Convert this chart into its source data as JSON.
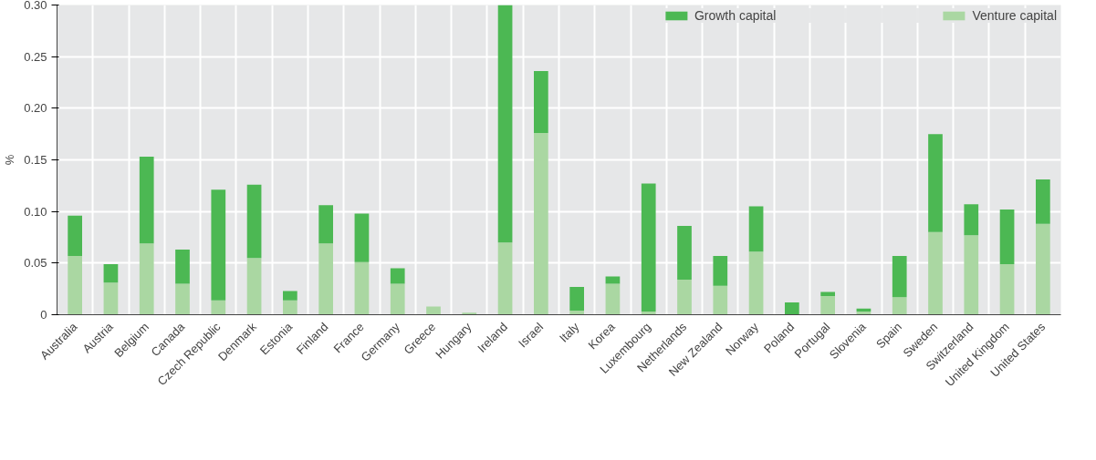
{
  "chart_data": {
    "type": "bar",
    "stacked": true,
    "ylabel": "%",
    "categories": [
      "Australia",
      "Austria",
      "Belgium",
      "Canada",
      "Czech Republic",
      "Denmark",
      "Estonia",
      "Finland",
      "France",
      "Germany",
      "Greece",
      "Hungary",
      "Ireland",
      "Israel",
      "Italy",
      "Korea",
      "Luxembourg",
      "Netherlands",
      "New Zealand",
      "Norway",
      "Poland",
      "Portugal",
      "Slovenia",
      "Spain",
      "Sweden",
      "Switzerland",
      "United Kingdom",
      "United States"
    ],
    "series": [
      {
        "name": "Venture capital",
        "color": "#aad7a2",
        "values": [
          0.057,
          0.031,
          0.069,
          0.03,
          0.014,
          0.055,
          0.014,
          0.069,
          0.051,
          0.03,
          0.008,
          0.002,
          0.07,
          0.176,
          0.004,
          0.03,
          0.003,
          0.034,
          0.028,
          0.061,
          0.0,
          0.018,
          0.003,
          0.017,
          0.08,
          0.077,
          0.049,
          0.088
        ]
      },
      {
        "name": "Growth capital",
        "color": "#4cb853",
        "values": [
          0.039,
          0.018,
          0.084,
          0.033,
          0.107,
          0.071,
          0.009,
          0.037,
          0.047,
          0.015,
          0.0,
          0.0,
          0.23,
          0.06,
          0.023,
          0.007,
          0.124,
          0.052,
          0.029,
          0.044,
          0.012,
          0.004,
          0.003,
          0.04,
          0.095,
          0.03,
          0.053,
          0.043
        ]
      }
    ],
    "ylim": [
      0,
      0.3
    ],
    "yticks": [
      {
        "value": 0,
        "label": "0"
      },
      {
        "value": 0.05,
        "label": "0.05"
      },
      {
        "value": 0.1,
        "label": "0.10"
      },
      {
        "value": 0.15,
        "label": "0.15"
      },
      {
        "value": 0.2,
        "label": "0.20"
      },
      {
        "value": 0.25,
        "label": "0.25"
      },
      {
        "value": 0.3,
        "label": "0.30"
      }
    ],
    "grid": true,
    "legend": "top"
  }
}
